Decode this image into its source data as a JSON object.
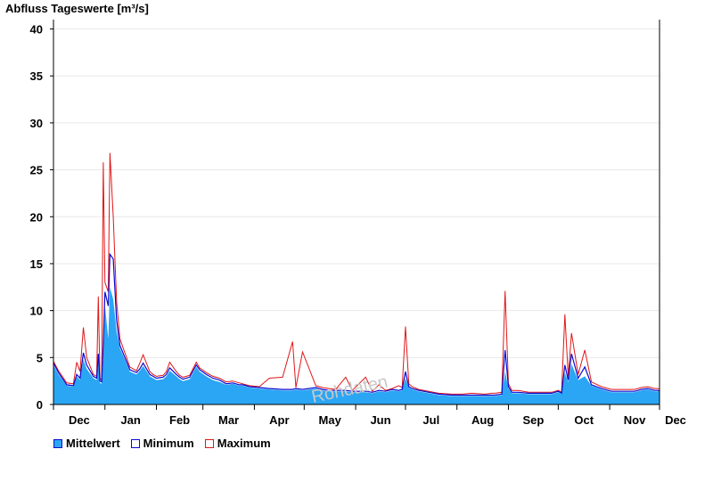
{
  "chart_data": {
    "type": "area",
    "title": "Abfluss Tageswerte [m³/s]",
    "ylim": [
      0,
      41
    ],
    "yticks": [
      0,
      5,
      10,
      15,
      20,
      25,
      30,
      35,
      40
    ],
    "xlim": [
      0,
      365
    ],
    "months": [
      "Dec",
      "Jan",
      "Feb",
      "Mar",
      "Apr",
      "May",
      "Jun",
      "Jul",
      "Aug",
      "Sep",
      "Oct",
      "Nov",
      "Dec"
    ],
    "month_starts": [
      0,
      31,
      62,
      90,
      121,
      151,
      182,
      212,
      243,
      274,
      304,
      335,
      365
    ],
    "watermark": "Rohdaten",
    "colors": {
      "mean": "#2aa6f4",
      "min": "#0a0ad0",
      "max": "#e01818",
      "grid": "#e8e8e8"
    },
    "series": [
      {
        "name": "Mittelwert",
        "x": [
          0,
          3,
          8,
          12,
          14,
          16,
          18,
          20,
          24,
          26,
          27,
          28,
          29,
          30,
          31,
          33,
          34,
          36,
          38,
          40,
          46,
          50,
          52,
          54,
          58,
          60,
          62,
          66,
          68,
          70,
          74,
          76,
          78,
          82,
          86,
          88,
          92,
          96,
          100,
          104,
          108,
          112,
          114,
          118,
          124,
          130,
          138,
          144,
          146,
          150,
          158,
          162,
          166,
          170,
          176,
          180,
          188,
          192,
          196,
          200,
          204,
          208,
          210,
          212,
          214,
          216,
          220,
          226,
          232,
          240,
          246,
          252,
          260,
          264,
          266,
          270,
          272,
          274,
          276,
          280,
          286,
          290,
          296,
          300,
          304,
          306,
          308,
          310,
          312,
          316,
          320,
          324,
          330,
          336,
          342,
          346,
          350,
          352,
          354,
          358,
          362,
          364,
          365
        ],
        "y": [
          4.2,
          3.2,
          2.0,
          1.9,
          3.0,
          2.6,
          4.8,
          3.8,
          2.8,
          2.6,
          4.5,
          2.3,
          2.2,
          4.9,
          10.5,
          7.0,
          12.5,
          11.2,
          7.8,
          6.0,
          3.5,
          3.2,
          3.6,
          4.1,
          3.0,
          2.8,
          2.6,
          2.7,
          3.0,
          3.6,
          3.0,
          2.7,
          2.5,
          2.7,
          4.0,
          3.5,
          3.0,
          2.6,
          2.4,
          2.1,
          2.2,
          2.0,
          2.0,
          1.8,
          1.7,
          1.6,
          1.5,
          1.5,
          1.6,
          1.5,
          1.7,
          1.5,
          1.4,
          1.4,
          1.4,
          1.3,
          1.3,
          1.2,
          1.4,
          1.3,
          1.5,
          1.4,
          1.5,
          2.8,
          1.8,
          1.6,
          1.4,
          1.2,
          1.0,
          0.9,
          0.9,
          0.9,
          0.9,
          0.9,
          0.9,
          1.0,
          3.5,
          1.7,
          1.2,
          1.2,
          1.1,
          1.1,
          1.1,
          1.1,
          1.3,
          1.1,
          3.4,
          2.4,
          4.3,
          2.6,
          3.0,
          2.0,
          1.6,
          1.3,
          1.3,
          1.3,
          1.3,
          1.4,
          1.5,
          1.6,
          1.4,
          1.4,
          1.3
        ]
      },
      {
        "name": "Minimum",
        "x": [
          0,
          3,
          8,
          12,
          14,
          16,
          18,
          20,
          24,
          26,
          27,
          28,
          29,
          30,
          31,
          33,
          34,
          36,
          38,
          40,
          46,
          50,
          52,
          54,
          58,
          60,
          62,
          66,
          68,
          70,
          74,
          76,
          78,
          82,
          86,
          88,
          92,
          96,
          100,
          104,
          108,
          112,
          114,
          118,
          124,
          130,
          138,
          144,
          146,
          150,
          158,
          162,
          166,
          170,
          176,
          180,
          188,
          192,
          196,
          200,
          204,
          208,
          210,
          212,
          214,
          216,
          220,
          226,
          232,
          240,
          246,
          252,
          260,
          264,
          266,
          270,
          272,
          274,
          276,
          280,
          286,
          290,
          296,
          300,
          304,
          306,
          308,
          310,
          312,
          316,
          320,
          324,
          330,
          336,
          342,
          346,
          350,
          352,
          354,
          358,
          362,
          364,
          365
        ],
        "y": [
          4.4,
          3.4,
          2.1,
          2.0,
          3.2,
          2.8,
          5.5,
          4.2,
          3.0,
          2.8,
          5.4,
          2.5,
          2.4,
          6.4,
          12.0,
          10.5,
          16.0,
          15.5,
          9.0,
          6.3,
          3.7,
          3.4,
          3.8,
          4.4,
          3.2,
          3.0,
          2.8,
          2.9,
          3.2,
          3.9,
          3.2,
          2.9,
          2.7,
          2.9,
          4.2,
          3.7,
          3.2,
          2.8,
          2.6,
          2.2,
          2.3,
          2.1,
          2.1,
          1.9,
          1.8,
          1.7,
          1.6,
          1.6,
          1.7,
          1.6,
          1.8,
          1.6,
          1.5,
          1.5,
          1.5,
          1.4,
          1.4,
          1.3,
          1.5,
          1.4,
          1.6,
          1.5,
          1.6,
          3.5,
          1.9,
          1.7,
          1.5,
          1.3,
          1.1,
          1.0,
          1.0,
          1.0,
          1.0,
          1.0,
          1.0,
          1.1,
          5.8,
          1.9,
          1.3,
          1.3,
          1.2,
          1.2,
          1.2,
          1.2,
          1.4,
          1.2,
          4.2,
          2.6,
          5.4,
          2.8,
          4.0,
          2.1,
          1.7,
          1.4,
          1.4,
          1.4,
          1.4,
          1.5,
          1.6,
          1.7,
          1.5,
          1.5,
          1.4
        ]
      },
      {
        "name": "Maximum",
        "x": [
          0,
          3,
          8,
          12,
          14,
          16,
          18,
          20,
          24,
          26,
          27,
          28,
          29,
          30,
          31,
          33,
          34,
          36,
          38,
          40,
          46,
          50,
          52,
          54,
          58,
          60,
          62,
          66,
          68,
          70,
          74,
          76,
          78,
          82,
          86,
          88,
          92,
          96,
          100,
          104,
          108,
          112,
          114,
          118,
          124,
          130,
          138,
          144,
          146,
          150,
          158,
          162,
          166,
          170,
          176,
          180,
          188,
          192,
          196,
          200,
          204,
          208,
          210,
          212,
          214,
          216,
          220,
          226,
          232,
          240,
          246,
          252,
          260,
          264,
          266,
          270,
          272,
          274,
          276,
          280,
          286,
          290,
          296,
          300,
          304,
          306,
          308,
          310,
          312,
          316,
          320,
          324,
          330,
          336,
          342,
          346,
          350,
          352,
          354,
          358,
          362,
          364,
          365
        ],
        "y": [
          4.6,
          3.6,
          2.3,
          2.2,
          4.5,
          3.5,
          8.2,
          5.0,
          3.2,
          3.0,
          11.5,
          2.8,
          2.6,
          25.8,
          13.0,
          12.0,
          26.8,
          20.0,
          11.0,
          7.0,
          4.0,
          3.6,
          4.4,
          5.3,
          3.5,
          3.2,
          3.0,
          3.1,
          3.5,
          4.5,
          3.5,
          3.1,
          2.9,
          3.1,
          4.5,
          3.9,
          3.4,
          3.0,
          2.8,
          2.4,
          2.5,
          2.3,
          2.2,
          2.0,
          1.9,
          2.8,
          2.9,
          6.7,
          1.8,
          5.6,
          2.0,
          1.8,
          1.7,
          1.6,
          2.9,
          1.5,
          2.9,
          1.4,
          2.1,
          1.5,
          1.7,
          2.0,
          1.8,
          8.3,
          2.2,
          1.9,
          1.6,
          1.4,
          1.2,
          1.1,
          1.1,
          1.2,
          1.1,
          1.2,
          1.2,
          1.3,
          12.1,
          2.2,
          1.5,
          1.5,
          1.3,
          1.3,
          1.3,
          1.3,
          1.5,
          1.3,
          9.6,
          3.0,
          7.6,
          3.2,
          5.8,
          2.4,
          1.9,
          1.6,
          1.6,
          1.6,
          1.6,
          1.7,
          1.8,
          1.9,
          1.7,
          1.7,
          1.6
        ]
      }
    ]
  },
  "legend": [
    {
      "label": "Mittelwert"
    },
    {
      "label": "Minimum"
    },
    {
      "label": "Maximum"
    }
  ]
}
